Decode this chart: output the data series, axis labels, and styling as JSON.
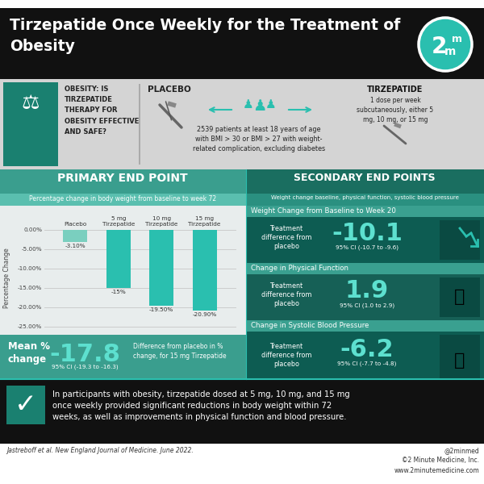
{
  "title_line1": "Tirzepatide Once Weekly for the Treatment of",
  "title_line2": "Obesity",
  "title_bg": "#111111",
  "title_color": "#ffffff",
  "logo_bg": "#2abfaf",
  "study_bg": "#d8d8d8",
  "study_question": "OBESITY: IS\nTIRZEPATIDE\nTHERAPY FOR\nOBESITY EFFECTIVE\nAND SAFE?",
  "study_placebo": "PLACEBO",
  "study_tirzepatide": "TIRZEPATIDE",
  "study_tirzepatide_desc": "1 dose per week\nsubcutaneously, either 5\nmg, 10 mg, or 15 mg",
  "study_patients": "2539 patients at least 18 years of age\nwith BMI > 30 or BMI > 27 with weight-\nrelated complication, excluding diabetes",
  "primary_header_bg": "#3a9e8e",
  "primary_title": "PRIMARY END POINT",
  "primary_subtitle": "Percentage change in body weight from baseline to week 72",
  "primary_chart_bg": "#e8e8e8",
  "bar_categories": [
    "Placebo",
    "5 mg\nTirzepatide",
    "10 mg\nTirzepatide",
    "15 mg\nTirzepatide"
  ],
  "bar_values": [
    -3.1,
    -15.0,
    -19.5,
    -20.9
  ],
  "bar_labels": [
    "-3.10%",
    "-15%",
    "-19.50%",
    "-20.90%"
  ],
  "bar_color_teal": "#2abfaf",
  "bar_color_placebo": "#7acfbf",
  "mean_change_label": "Mean %\nchange",
  "mean_change_value": "-17.8",
  "mean_change_ci": "95% CI (-19.3 to -16.3)",
  "mean_change_desc": "Difference from placebo in %\nchange, for 15 mg Tirzepatide",
  "mean_change_bg": "#3a9e8e",
  "secondary_header_bg": "#1a6e60",
  "secondary_row_bg": "#0d5c52",
  "secondary_row_bg2": "#166056",
  "secondary_subheader_bg": "#2a8070",
  "secondary_title": "SECONDARY END POINTS",
  "secondary_subtitle": "Weight change baseline, physical function, systolic blood pressure",
  "sec1_title": "Weight Change from Baseline to Week 20",
  "sec1_label": "Treatment\ndifference from\nplacebo",
  "sec1_value": "-10.1",
  "sec1_ci": "95% CI (-10.7 to -9.6)",
  "sec2_title": "Change in Physical Function",
  "sec2_label": "Treatment\ndifference from\nplacebo",
  "sec2_value": "1.9",
  "sec2_ci": "95% CI (1.0 to 2.9)",
  "sec3_title": "Change in Systolic Blood Pressure",
  "sec3_label": "Treatment\ndifference from\nplacebo",
  "sec3_value": "-6.2",
  "sec3_ci": "95% CI (-7.7 to -4.8)",
  "conclusion_bg": "#111111",
  "conclusion_text": "In participants with obesity, tirzepatide dosed at 5 mg, 10 mg, and 15 mg\nonce weekly provided significant reductions in body weight within 72\nweeks, as well as improvements in physical function and blood pressure.",
  "footer_text": "Jastreboff et al. New England Journal of Medicine. June 2022.",
  "footer_right": "@2minmed\n©2 Minute Medicine, Inc.\nwww.2minutemedicine.com",
  "teal_dark": "#0d5c52",
  "teal_mid": "#1a8070",
  "teal_light": "#2abfaf",
  "teal_pale": "#5de0cf",
  "teal_value": "#4dd9c8",
  "white": "#ffffff",
  "black": "#111111",
  "gray_bg": "#d4d4d4",
  "dark_gray": "#333333"
}
